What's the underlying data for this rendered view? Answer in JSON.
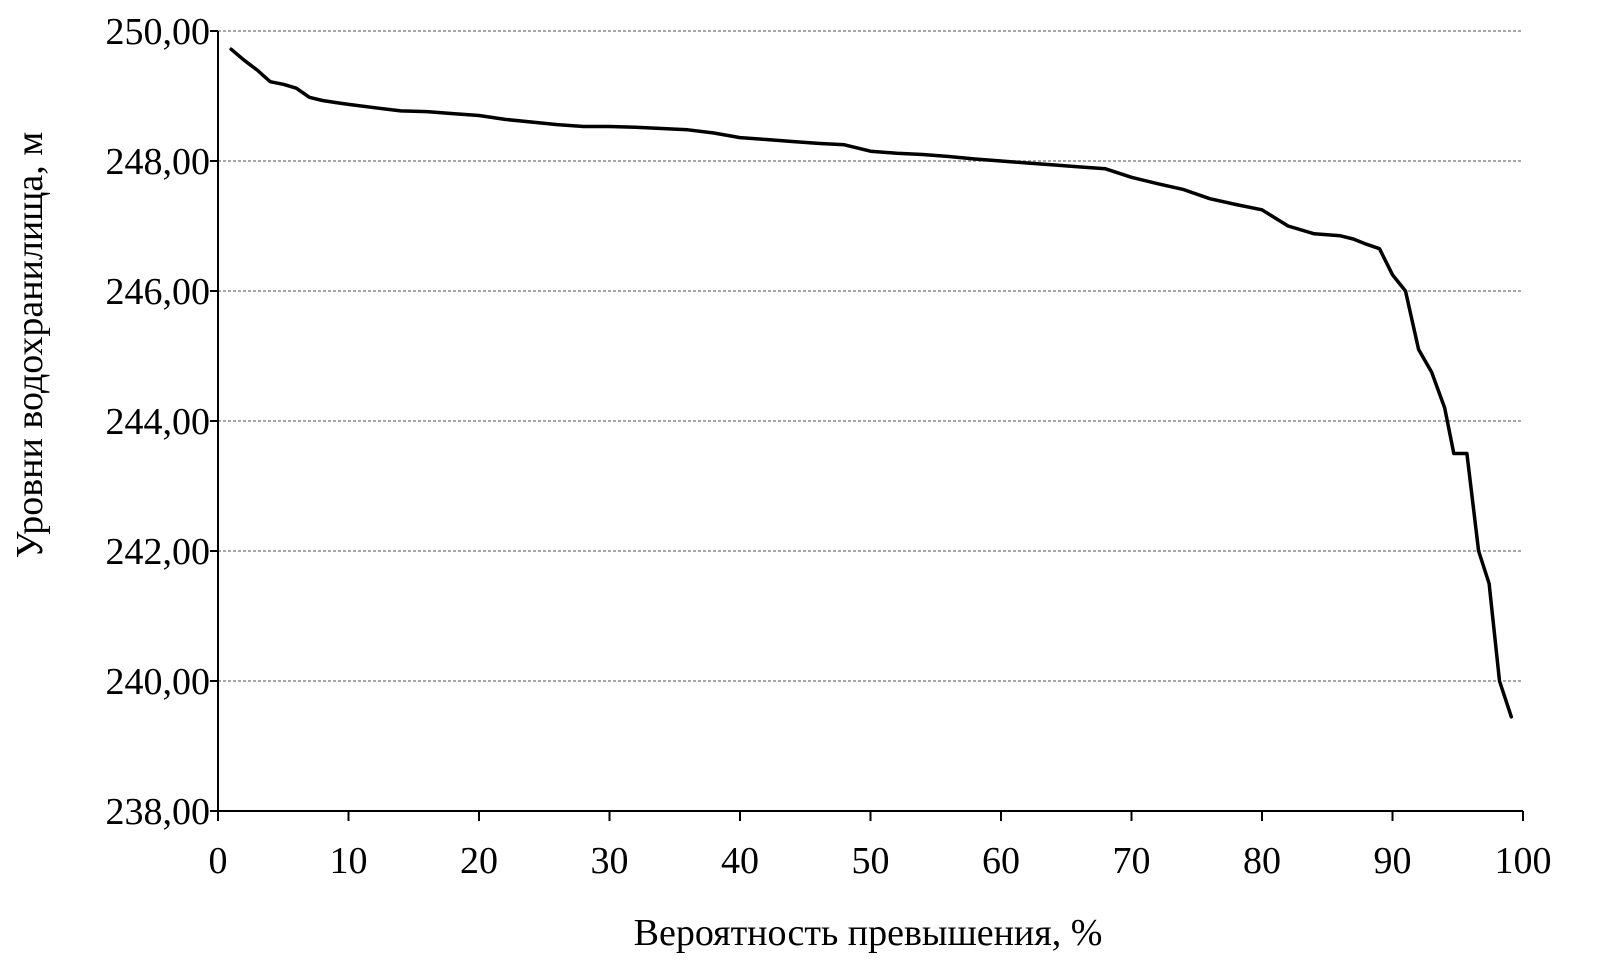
{
  "chart_data": {
    "type": "line",
    "xlabel": "Вероятность превышения, %",
    "ylabel": "Уровни водохранилища, м",
    "xlim": [
      0,
      100
    ],
    "ylim": [
      238,
      250
    ],
    "x_ticks": [
      0,
      10,
      20,
      30,
      40,
      50,
      60,
      70,
      80,
      90,
      100
    ],
    "x_tick_labels": [
      "0",
      "10",
      "20",
      "30",
      "40",
      "50",
      "60",
      "70",
      "80",
      "90",
      "100"
    ],
    "y_ticks": [
      238,
      240,
      242,
      244,
      246,
      248,
      250
    ],
    "y_tick_labels": [
      "238,00",
      "240,00",
      "242,00",
      "244,00",
      "246,00",
      "248,00",
      "250,00"
    ],
    "grid": "horizontal",
    "legend": "none",
    "series": [
      {
        "color": "#000000",
        "points": [
          [
            1,
            249.72
          ],
          [
            2,
            249.55
          ],
          [
            3,
            249.4
          ],
          [
            4,
            249.22
          ],
          [
            5,
            249.18
          ],
          [
            6,
            249.12
          ],
          [
            7,
            248.98
          ],
          [
            8,
            248.93
          ],
          [
            9,
            248.9
          ],
          [
            10,
            248.87
          ],
          [
            12,
            248.82
          ],
          [
            14,
            248.77
          ],
          [
            16,
            248.76
          ],
          [
            18,
            248.73
          ],
          [
            20,
            248.7
          ],
          [
            22,
            248.64
          ],
          [
            24,
            248.6
          ],
          [
            26,
            248.56
          ],
          [
            28,
            248.53
          ],
          [
            30,
            248.53
          ],
          [
            32,
            248.52
          ],
          [
            34,
            248.5
          ],
          [
            36,
            248.48
          ],
          [
            38,
            248.43
          ],
          [
            40,
            248.36
          ],
          [
            42,
            248.33
          ],
          [
            44,
            248.3
          ],
          [
            46,
            248.27
          ],
          [
            48,
            248.25
          ],
          [
            50,
            248.15
          ],
          [
            52,
            248.12
          ],
          [
            54,
            248.1
          ],
          [
            56,
            248.07
          ],
          [
            58,
            248.03
          ],
          [
            60,
            248.0
          ],
          [
            62,
            247.97
          ],
          [
            64,
            247.94
          ],
          [
            66,
            247.91
          ],
          [
            68,
            247.88
          ],
          [
            70,
            247.75
          ],
          [
            72,
            247.65
          ],
          [
            74,
            247.56
          ],
          [
            76,
            247.42
          ],
          [
            78,
            247.33
          ],
          [
            80,
            247.25
          ],
          [
            82,
            247.0
          ],
          [
            84,
            246.88
          ],
          [
            86,
            246.85
          ],
          [
            87,
            246.8
          ],
          [
            88,
            246.72
          ],
          [
            89,
            246.65
          ],
          [
            90,
            246.25
          ],
          [
            91,
            246.0
          ],
          [
            92,
            245.1
          ],
          [
            93,
            244.75
          ],
          [
            94,
            244.2
          ],
          [
            94.7,
            243.5
          ],
          [
            95.7,
            243.5
          ],
          [
            96.6,
            242.0
          ],
          [
            97.4,
            241.5
          ],
          [
            98.2,
            240.0
          ],
          [
            99.1,
            239.45
          ]
        ]
      }
    ]
  }
}
